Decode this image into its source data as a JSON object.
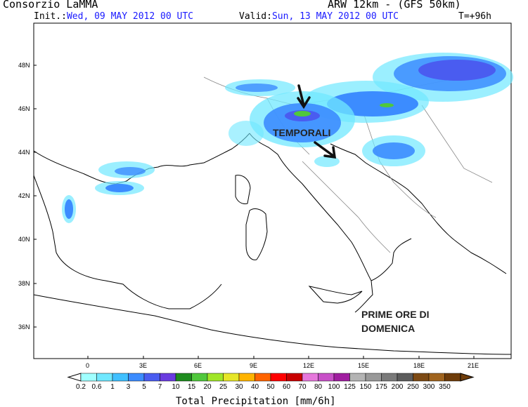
{
  "header": {
    "org": "Consorzio LaMMA",
    "model": "ARW 12km - (GFS 50km)",
    "init_label": "Init.:",
    "init_value": "Wed, 09 MAY 2012  00 UTC",
    "valid_label": "Valid:",
    "valid_value": "Sun, 13 MAY 2012  00 UTC",
    "forecast_step": "T=+96h"
  },
  "map": {
    "lat_labels": [
      "48N",
      "46N",
      "44N",
      "42N",
      "40N",
      "38N",
      "36N"
    ],
    "lon_labels": [
      "0",
      "3E",
      "6E",
      "9E",
      "12E",
      "15E",
      "18E",
      "21E"
    ],
    "annotations": {
      "storms": "TEMPORALI",
      "timing_line1": "PRIME ORE DI",
      "timing_line2": "DOMENICA"
    }
  },
  "colorbar": {
    "title": "Total Precipitation [mm/6h]",
    "levels": [
      "0.2",
      "0.6",
      "1",
      "3",
      "5",
      "7",
      "10",
      "15",
      "20",
      "25",
      "30",
      "40",
      "50",
      "60",
      "70",
      "80",
      "100",
      "125",
      "150",
      "175",
      "200",
      "250",
      "300",
      "350"
    ],
    "colors": [
      "#a0ffff",
      "#70e8ff",
      "#40c0ff",
      "#3c8cff",
      "#4a5cf0",
      "#6a3ce0",
      "#1e8c1e",
      "#50c83c",
      "#a0e628",
      "#e6e628",
      "#ffb400",
      "#ff6400",
      "#ff0000",
      "#c80000",
      "#e678dc",
      "#c850c8",
      "#a01ea0",
      "#b4b4b4",
      "#999999",
      "#7a7a7a",
      "#5c5c5c",
      "#7d4a14",
      "#a0641e",
      "#6e3c0a"
    ]
  }
}
